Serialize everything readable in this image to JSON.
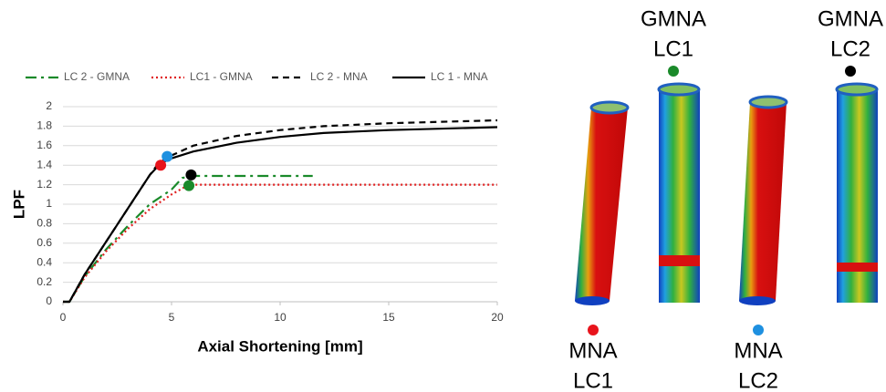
{
  "chart_data": {
    "type": "line",
    "xlabel": "Axial Shortening [mm]",
    "ylabel": "LPF",
    "xlim": [
      0,
      20
    ],
    "ylim": [
      0,
      2
    ],
    "xticks": [
      0,
      5,
      10,
      15,
      20
    ],
    "yticks": [
      0,
      0.2,
      0.4,
      0.6,
      0.8,
      1,
      1.2,
      1.4,
      1.6,
      1.8,
      2
    ],
    "grid": true,
    "legend": "top",
    "series": [
      {
        "name": "LC 2 - GMNA",
        "color": "#1a8a2a",
        "dash": "dash-dot",
        "x": [
          0,
          0.3,
          1,
          2,
          3,
          4,
          5,
          5.5,
          6,
          11.5
        ],
        "values": [
          0,
          0,
          0.26,
          0.54,
          0.78,
          1.0,
          1.15,
          1.27,
          1.29,
          1.29
        ]
      },
      {
        "name": "LC1 - GMNA",
        "color": "#e02020",
        "dash": "dotted",
        "x": [
          0,
          0.3,
          1,
          2,
          3,
          4,
          5,
          5.8,
          20
        ],
        "values": [
          0,
          0,
          0.25,
          0.52,
          0.75,
          0.95,
          1.1,
          1.2,
          1.2
        ]
      },
      {
        "name": "LC 2 - MNA",
        "color": "#000000",
        "dash": "dashed",
        "x": [
          0,
          0.3,
          1,
          2,
          3,
          4,
          4.4,
          5,
          6,
          8,
          10,
          12,
          15,
          20
        ],
        "values": [
          0,
          0,
          0.28,
          0.62,
          0.96,
          1.3,
          1.42,
          1.5,
          1.6,
          1.7,
          1.76,
          1.8,
          1.83,
          1.86
        ]
      },
      {
        "name": "LC 1 - MNA",
        "color": "#000000",
        "dash": "solid",
        "x": [
          0,
          0.3,
          1,
          2,
          3,
          4,
          4.5,
          5,
          6,
          8,
          10,
          12,
          15,
          20
        ],
        "values": [
          0,
          0,
          0.28,
          0.62,
          0.96,
          1.3,
          1.42,
          1.47,
          1.54,
          1.63,
          1.69,
          1.73,
          1.76,
          1.79
        ]
      }
    ],
    "markers": [
      {
        "x": 4.5,
        "y": 1.4,
        "color": "#e8141c"
      },
      {
        "x": 4.8,
        "y": 1.49,
        "color": "#1e90e0"
      },
      {
        "x": 5.9,
        "y": 1.3,
        "color": "#000000"
      },
      {
        "x": 5.8,
        "y": 1.19,
        "color": "#1a8a2a"
      }
    ]
  },
  "figure": {
    "labels": [
      {
        "lines": [
          "GMNA",
          "LC1"
        ],
        "dot": "#1a8a2a"
      },
      {
        "lines": [
          "GMNA",
          "LC2"
        ],
        "dot": "#000000"
      },
      {
        "lines": [
          "MNA",
          "LC1"
        ],
        "dot": "#e8141c"
      },
      {
        "lines": [
          "MNA",
          "LC2"
        ],
        "dot": "#1e90e0"
      }
    ]
  }
}
